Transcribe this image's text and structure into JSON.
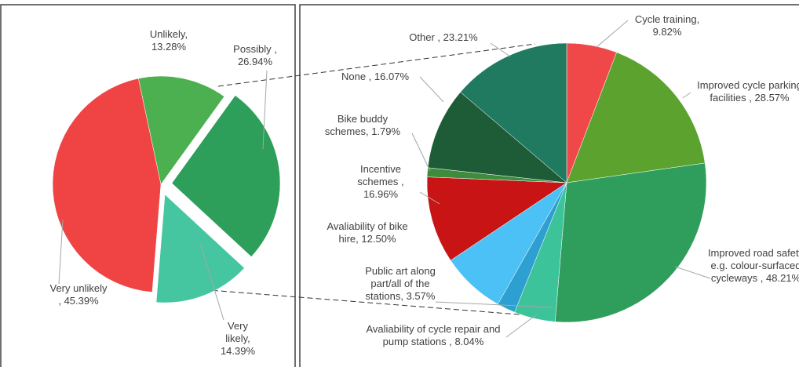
{
  "chart_data": [
    {
      "type": "pie",
      "categories": [
        "Unlikely,",
        "Possibly ,",
        "Very likely,",
        "Very unlikely ,"
      ],
      "values": [
        13.28,
        26.94,
        14.39,
        45.39
      ],
      "value_labels": [
        "13.28%",
        "26.94%",
        "14.39%",
        "45.39%"
      ],
      "colors": [
        "#4caf50",
        "#2e9e5b",
        "#45c6a0",
        "#f04444"
      ]
    },
    {
      "type": "pie",
      "categories": [
        "Cycle training,",
        "Improved cycle parking facilities ,",
        "Improved road safety e.g. colour-surfaced cycleways ,",
        "Avaliability of cycle repair and pump stations ,",
        "Public art along part/all of the stations,",
        "Avaliability of bike hire,",
        "Incentive schemes ,",
        "Bike buddy schemes,",
        "None ,",
        "Other ,"
      ],
      "values": [
        9.82,
        28.57,
        48.21,
        8.04,
        3.57,
        12.5,
        16.96,
        1.79,
        16.07,
        23.21
      ],
      "value_labels": [
        "9.82%",
        "28.57%",
        "48.21%",
        "8.04%",
        "3.57%",
        "12.50%",
        "16.96%",
        "1.79%",
        "16.07%",
        "23.21%"
      ],
      "colors": [
        "#f04848",
        "#5ba22e",
        "#2f9e5c",
        "#3cc39a",
        "#2d9fd0",
        "#4cc1f5",
        "#c81414",
        "#3c8c3c",
        "#1e5c38",
        "#1f7a60"
      ]
    }
  ]
}
